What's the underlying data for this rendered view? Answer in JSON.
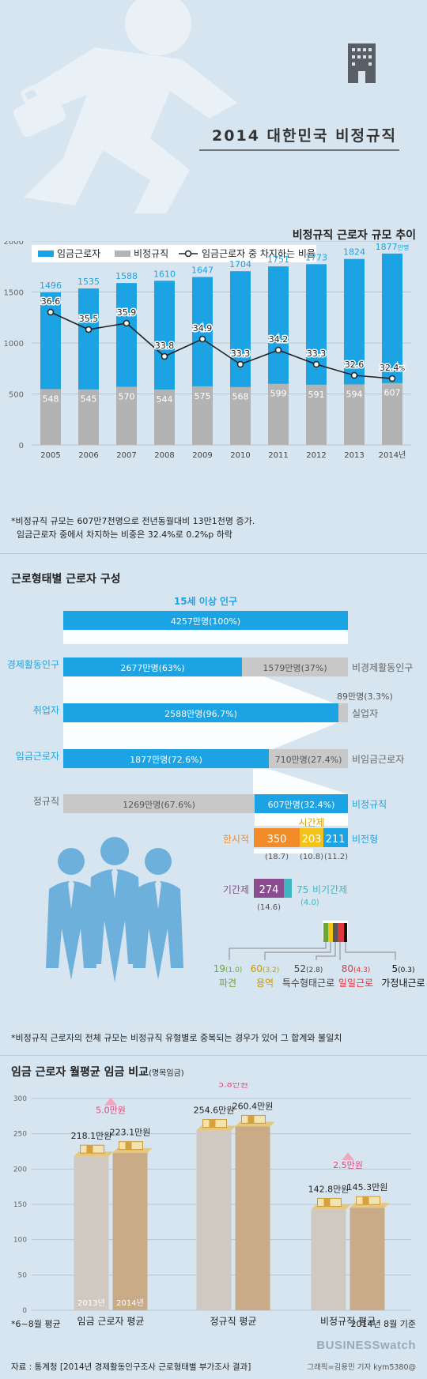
{
  "header": {
    "title": "2014 대한민국 비정규직"
  },
  "section1": {
    "title": "비정규직 근로자 규모 추이",
    "legend": {
      "wage": "임금근로자",
      "nonreg": "비정규직",
      "ratio": "임금근로자 중 차지하는 비율"
    },
    "last_unit": "만명",
    "last_pct_unit": "%",
    "note_line1": "*비정규직 규모는 607만7천명으로 전년동월대비 13만1천명 증가.",
    "note_line2": "  임금근로자 중에서 차지하는 비중은 32.4%로 0.2%p 하락"
  },
  "chart_data": [
    {
      "type": "bar",
      "title": "비정규직 근로자 규모 추이",
      "categories": [
        "2005",
        "2006",
        "2007",
        "2008",
        "2009",
        "2010",
        "2011",
        "2012",
        "2013",
        "2014년"
      ],
      "ylim": [
        0,
        2000
      ],
      "yticks": [
        0,
        500,
        1000,
        1500,
        2000
      ],
      "grid": true,
      "legend": "top-left",
      "series": [
        {
          "name": "임금근로자",
          "values": [
            1496,
            1535,
            1588,
            1610,
            1647,
            1704,
            1751,
            1773,
            1824,
            1877
          ],
          "color": "#1ba3e3"
        },
        {
          "name": "비정규직",
          "values": [
            548,
            545,
            570,
            544,
            575,
            568,
            599,
            591,
            594,
            607
          ],
          "color": "#b3b3b3"
        },
        {
          "name": "임금근로자 중 차지하는 비율",
          "values": [
            36.6,
            35.5,
            35.9,
            33.8,
            34.9,
            33.3,
            34.2,
            33.3,
            32.6,
            32.4
          ],
          "color": "#222222"
        }
      ]
    },
    {
      "type": "bar",
      "title": "임금 근로자 월평균 임금 비교",
      "categories": [
        "임금 근로자 평균",
        "정규직 평균",
        "비정규직 평균"
      ],
      "ylim": [
        0,
        300
      ],
      "yticks": [
        0,
        50,
        100,
        150,
        200,
        250,
        300
      ],
      "series": [
        {
          "name": "2013년",
          "values": [
            218.1,
            254.6,
            142.8
          ],
          "color": "#cfc9c1"
        },
        {
          "name": "2014년",
          "values": [
            223.1,
            260.4,
            145.3
          ],
          "color": "#c9ab88"
        }
      ],
      "increase": [
        "5.0만원",
        "5.8만원",
        "2.5만원"
      ]
    }
  ],
  "section2": {
    "title": "근로형태별 근로자 구성",
    "pop_label": "15세 이상 인구",
    "pop_value": "4257만명(100%)",
    "rows": [
      {
        "left": "경제활동인구",
        "main": "2677만명(63%)",
        "rest": "1579만명(37%)",
        "right": "비경제활동인구"
      },
      {
        "left": "취업자",
        "main": "2588만명(96.7%)",
        "rest": "89만명(3.3%)",
        "right": "실업자"
      },
      {
        "left": "임금근로자",
        "main": "1877만명(72.6%)",
        "rest": "710만명(27.4%)",
        "right": "비임금근로자"
      }
    ],
    "reg_label": "정규직",
    "reg_value": "1269만명(67.6%)",
    "nonreg_value": "607만명(32.4%)",
    "nonreg_label": "비정규직",
    "types": {
      "parttime_label": "한시적",
      "parttime": "350",
      "parttime_pct": "(18.7)",
      "hourly_label": "시간제",
      "hourly": "203",
      "hourly_pct": "(10.8)",
      "atypical": "211",
      "atypical_pct": "(11.2)",
      "atypical_label": "비전형",
      "fixed_label": "기간제",
      "fixed": "274",
      "fixed_pct": "(14.6)",
      "nonfixed": "75",
      "nonfixed_label": "비기간제",
      "nonfixed_pct": "(4.0)"
    },
    "subtypes": [
      {
        "value": "19",
        "pct": "(1.0)",
        "label": "파견",
        "color": "#6aa833"
      },
      {
        "value": "60",
        "pct": "(3.2)",
        "label": "용역",
        "color": "#c79a00"
      },
      {
        "value": "52",
        "pct": "(2.8)",
        "label": "특수형태근로",
        "color": "#444444"
      },
      {
        "value": "80",
        "pct": "(4.3)",
        "label": "일일근로",
        "color": "#e0373f"
      },
      {
        "value": "5",
        "pct": "(0.3)",
        "label": "가정내근로",
        "color": "#111111"
      }
    ],
    "note": "*비정규직 근로자의 전체 규모는 비정규직 유형별로 중복되는 경우가 있어 그 합계와 불일치"
  },
  "section3": {
    "title": "임금 근로자 월평균 임금 비교",
    "title_suffix": "(명목임금)",
    "values_text": [
      "218.1만원",
      "223.1만원",
      "254.6만원",
      "260.4만원",
      "142.8만원",
      "145.3만원"
    ],
    "year1": "2013년",
    "year2": "2014년",
    "period_note": "*6~8월 평균",
    "date_note": "2014년 8월 기준"
  },
  "footer": {
    "source": "자료 : 통계청 [2014년 경제활동인구조사 근로형태별 부가조사 결과]",
    "brand": "BUSINESSwatch",
    "credit": "그래픽=김용민 기자 kym5380@"
  }
}
